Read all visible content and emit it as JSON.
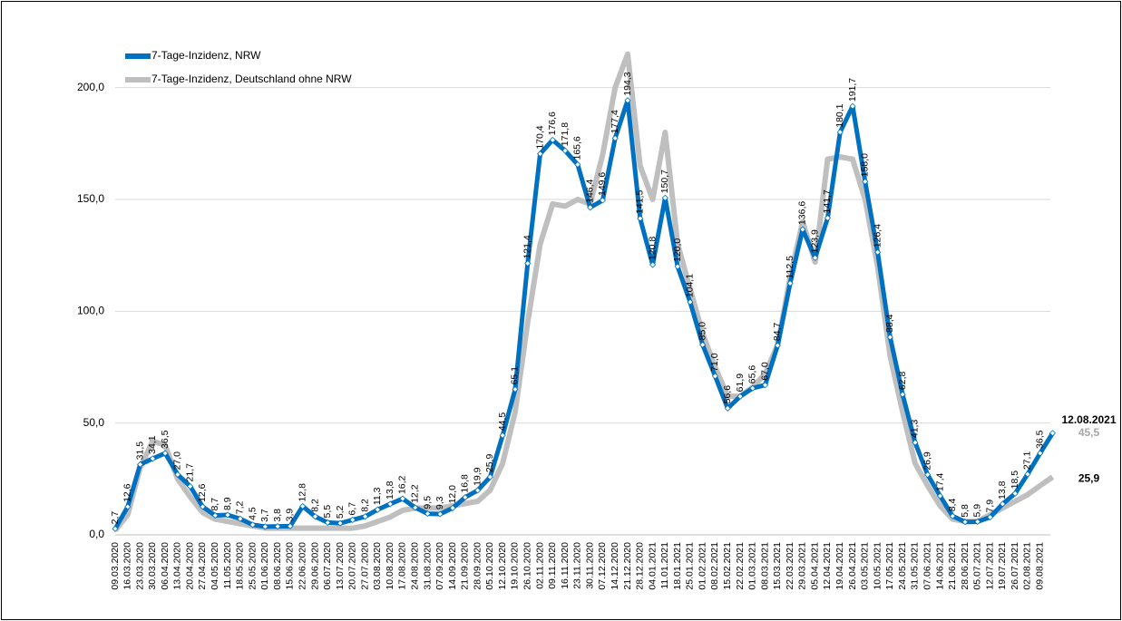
{
  "chart_data": {
    "type": "line",
    "categories": [
      "09.03.2020",
      "16.03.2020",
      "23.03.2020",
      "30.03.2020",
      "06.04.2020",
      "13.04.2020",
      "20.04.2020",
      "27.04.2020",
      "04.05.2020",
      "11.05.2020",
      "18.05.2020",
      "25.05.2020",
      "01.06.2020",
      "08.06.2020",
      "15.06.2020",
      "22.06.2020",
      "29.06.2020",
      "06.07.2020",
      "13.07.2020",
      "20.07.2020",
      "27.07.2020",
      "03.08.2020",
      "10.08.2020",
      "17.08.2020",
      "24.08.2020",
      "31.08.2020",
      "07.09.2020",
      "14.09.2020",
      "21.09.2020",
      "28.09.2020",
      "05.10.2020",
      "12.10.2020",
      "19.10.2020",
      "26.10.2020",
      "02.11.2020",
      "09.11.2020",
      "16.11.2020",
      "23.11.2020",
      "30.11.2020",
      "07.12.2020",
      "14.12.2020",
      "21.12.2020",
      "28.12.2020",
      "04.01.2021",
      "11.01.2021",
      "18.01.2021",
      "25.01.2021",
      "01.02.2021",
      "08.02.2021",
      "15.02.2021",
      "22.02.2021",
      "01.03.2021",
      "08.03.2021",
      "15.03.2021",
      "22.03.2021",
      "29.03.2021",
      "05.04.2021",
      "12.04.2021",
      "19.04.2021",
      "26.04.2021",
      "03.05.2021",
      "10.05.2021",
      "17.05.2021",
      "24.05.2021",
      "31.05.2021",
      "07.06.2021",
      "14.06.2021",
      "21.06.2021",
      "28.06.2021",
      "05.07.2021",
      "12.07.2021",
      "19.07.2021",
      "26.07.2021",
      "02.08.2021",
      "09.08.2021",
      null
    ],
    "last_date": "12.08.2021",
    "series": [
      {
        "name": "7-Tage-Inzidenz, Deutschland ohne NRW",
        "color": "#bfbfbf",
        "values": [
          2,
          9,
          30,
          42,
          40,
          25,
          17,
          10,
          7,
          6,
          5,
          4,
          3,
          3,
          3,
          3,
          3,
          3,
          3,
          3,
          4,
          6,
          8,
          11,
          12,
          12,
          12,
          13,
          14,
          15,
          20,
          32,
          55,
          95,
          130,
          148,
          147,
          150,
          148,
          170,
          200,
          215,
          165,
          150,
          180,
          130,
          110,
          90,
          75,
          62,
          62,
          66,
          72,
          85,
          115,
          140,
          122,
          168,
          169,
          168,
          150,
          120,
          80,
          55,
          32,
          22,
          13,
          7,
          6,
          6,
          9,
          12,
          15,
          18,
          22,
          25.9
        ],
        "value_labels": [
          null,
          null,
          null,
          null,
          null,
          null,
          null,
          null,
          null,
          null,
          null,
          null,
          null,
          null,
          null,
          null,
          null,
          null,
          null,
          null,
          null,
          null,
          null,
          null,
          null,
          null,
          null,
          null,
          null,
          null,
          null,
          null,
          null,
          null,
          null,
          null,
          null,
          null,
          null,
          null,
          null,
          null,
          null,
          null,
          null,
          null,
          null,
          null,
          null,
          null,
          null,
          null,
          null,
          null,
          null,
          null,
          null,
          null,
          null,
          null,
          null,
          null,
          null,
          null,
          null,
          null,
          null,
          null,
          null,
          null,
          null,
          null,
          null,
          null,
          null,
          "25,9"
        ]
      },
      {
        "name": "7-Tage-Inzidenz, NRW",
        "color": "#0070c0",
        "values": [
          2.7,
          12.6,
          31.5,
          34.1,
          36.5,
          27.0,
          21.7,
          12.6,
          8.7,
          8.9,
          7.2,
          4.5,
          3.7,
          3.8,
          3.9,
          12.8,
          8.2,
          5.5,
          5.2,
          6.7,
          8.2,
          11.3,
          13.8,
          16.2,
          12.2,
          9.5,
          9.3,
          12.0,
          16.8,
          19.9,
          25.9,
          44.5,
          65.1,
          121.4,
          170.4,
          176.6,
          171.8,
          165.6,
          146.4,
          149.6,
          177.4,
          194.3,
          141.5,
          120.8,
          150.7,
          120.0,
          104.1,
          85.0,
          71.0,
          56.6,
          61.9,
          65.6,
          67.0,
          84.7,
          112.5,
          136.6,
          123.9,
          141.7,
          180.1,
          191.7,
          158.0,
          126.4,
          88.4,
          62.8,
          41.3,
          26.9,
          17.4,
          8.4,
          5.8,
          5.9,
          7.9,
          13.8,
          18.5,
          27.1,
          36.5,
          45.5
        ],
        "value_labels": [
          "2,7",
          "12,6",
          "31,5",
          "34,1",
          "36,5",
          "27,0",
          "21,7",
          "12,6",
          "8,7",
          "8,9",
          "7,2",
          "4,5",
          "3,7",
          "3,8",
          "3,9",
          "12,8",
          "8,2",
          "5,5",
          "5,2",
          "6,7",
          "8,2",
          "11,3",
          "13,8",
          "16,2",
          "12,2",
          "9,5",
          "9,3",
          "12,0",
          "16,8",
          "19,9",
          "25,9",
          "44,5",
          "65,1",
          "121,4",
          "170,4",
          "176,6",
          "171,8",
          "165,6",
          "146,4",
          "149,6",
          "177,4",
          "194,3",
          "141,5",
          "120,8",
          "150,7",
          "120,0",
          "104,1",
          "85,0",
          "71,0",
          "56,6",
          "61,9",
          "65,6",
          "67,0",
          "84,7",
          "112,5",
          "136,6",
          "123,9",
          "141,7",
          "180,1",
          "191,7",
          "158,0",
          "126,4",
          "88,4",
          "62,8",
          "41,3",
          "26,9",
          "17,4",
          "8,4",
          "5,8",
          "5,9",
          "7,9",
          "13,8",
          "18,5",
          "27,1",
          "36,5",
          "45,5"
        ]
      }
    ],
    "ylim": [
      0,
      225
    ],
    "yticks": [
      {
        "value": 0,
        "label": "0,0"
      },
      {
        "value": 50,
        "label": "50,0"
      },
      {
        "value": 100,
        "label": "100,0"
      },
      {
        "value": 150,
        "label": "150,0"
      },
      {
        "value": 200,
        "label": "200,0"
      }
    ],
    "grid": true,
    "legend": "top-left"
  }
}
